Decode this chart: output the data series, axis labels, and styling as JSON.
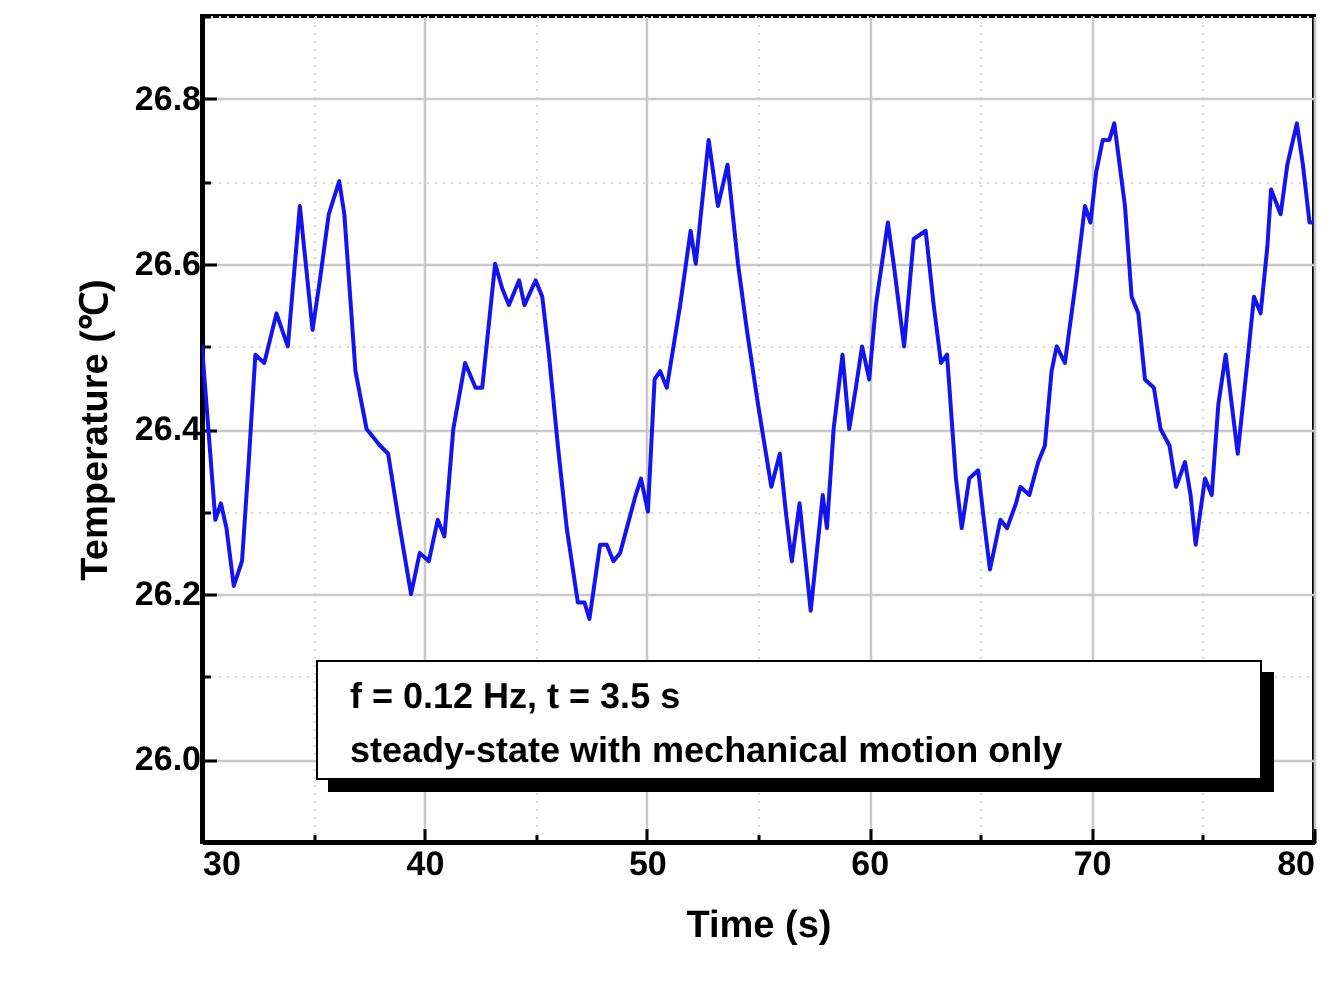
{
  "chart_data": {
    "type": "line",
    "xlabel": "Time (s)",
    "ylabel": "Temperature (℃)",
    "annotations": [
      "f = 0.12 Hz, t = 3.5 s",
      "steady-state with mechanical motion only"
    ],
    "xlim": [
      30,
      80
    ],
    "xticks": [
      30,
      {
        "value": 35,
        "label": null
      },
      40,
      {
        "value": 45,
        "label": null
      },
      50,
      {
        "value": 55,
        "label": null
      },
      60,
      {
        "value": 65,
        "label": null
      },
      70,
      {
        "value": 75,
        "label": null
      },
      80
    ],
    "ylim": [
      25.9,
      26.9
    ],
    "yticks": [
      {
        "value": 25.9,
        "label": null
      },
      {
        "value": 26.0,
        "label": "26.0"
      },
      {
        "value": 26.1,
        "label": null
      },
      {
        "value": 26.2,
        "label": "26.2"
      },
      {
        "value": 26.3,
        "label": null
      },
      {
        "value": 26.4,
        "label": "26.4"
      },
      {
        "value": 26.5,
        "label": null
      },
      {
        "value": 26.6,
        "label": "26.6"
      },
      {
        "value": 26.7,
        "label": null
      },
      {
        "value": 26.8,
        "label": "26.8"
      },
      {
        "value": 26.9,
        "label": null
      }
    ],
    "grid": true,
    "marker": "none",
    "line_style": "solid",
    "series": [
      {
        "color": "#1414f0",
        "x": [
          30,
          30.6,
          30.85,
          31.1,
          31.43,
          31.8,
          32.1,
          32.4,
          32.8,
          33.35,
          33.6,
          33.86,
          34.4,
          34.97,
          35.3,
          35.7,
          36.17,
          36.4,
          36.9,
          37.4,
          38.0,
          38.37,
          38.9,
          39.4,
          39.79,
          40.2,
          40.6,
          40.9,
          41.3,
          41.83,
          42.3,
          42.6,
          43.18,
          43.5,
          43.8,
          44.26,
          44.5,
          45.0,
          45.3,
          45.6,
          46.0,
          46.4,
          46.9,
          47.2,
          47.42,
          47.9,
          48.2,
          48.5,
          48.8,
          49.1,
          49.5,
          49.74,
          50.05,
          50.35,
          50.6,
          50.9,
          51.5,
          51.97,
          52.2,
          52.78,
          53.2,
          53.63,
          54.1,
          54.5,
          55.0,
          55.3,
          55.6,
          55.98,
          56.25,
          56.52,
          56.87,
          57.37,
          57.91,
          58.1,
          58.4,
          58.8,
          59.1,
          59.4,
          59.68,
          60.0,
          60.3,
          60.84,
          61.1,
          61.57,
          62.0,
          62.54,
          62.9,
          63.23,
          63.5,
          63.9,
          64.16,
          64.5,
          64.9,
          65.2,
          65.43,
          65.9,
          66.2,
          66.6,
          66.8,
          67.2,
          67.6,
          67.9,
          68.2,
          68.43,
          68.8,
          69.3,
          69.7,
          69.95,
          70.2,
          70.5,
          70.8,
          71.02,
          71.5,
          71.8,
          72.1,
          72.4,
          72.8,
          73.1,
          73.5,
          73.8,
          74.2,
          74.45,
          74.68,
          75.1,
          75.4,
          75.7,
          76.03,
          76.57,
          77.0,
          77.3,
          77.6,
          77.9,
          78.07,
          78.5,
          78.8,
          79.23,
          79.5,
          79.8,
          80
        ],
        "values": [
          26.5,
          26.29,
          26.31,
          26.28,
          26.21,
          26.24,
          26.36,
          26.49,
          26.48,
          26.54,
          26.52,
          26.5,
          26.67,
          26.52,
          26.58,
          26.66,
          26.7,
          26.66,
          26.47,
          26.4,
          26.38,
          26.37,
          26.28,
          26.2,
          26.25,
          26.24,
          26.29,
          26.27,
          26.4,
          26.48,
          26.45,
          26.45,
          26.6,
          26.57,
          26.55,
          26.58,
          26.55,
          26.58,
          26.56,
          26.49,
          26.38,
          26.28,
          26.19,
          26.19,
          26.17,
          26.26,
          26.26,
          26.24,
          26.25,
          26.28,
          26.32,
          26.34,
          26.3,
          26.46,
          26.47,
          26.45,
          26.55,
          26.64,
          26.6,
          26.75,
          26.67,
          26.72,
          26.6,
          26.52,
          26.43,
          26.38,
          26.33,
          26.37,
          26.3,
          26.24,
          26.31,
          26.18,
          26.32,
          26.28,
          26.4,
          26.49,
          26.4,
          26.45,
          26.5,
          26.46,
          26.55,
          26.65,
          26.6,
          26.5,
          26.63,
          26.64,
          26.55,
          26.48,
          26.49,
          26.34,
          26.28,
          26.34,
          26.35,
          26.28,
          26.23,
          26.29,
          26.28,
          26.31,
          26.33,
          26.32,
          26.36,
          26.38,
          26.47,
          26.5,
          26.48,
          26.58,
          26.67,
          26.65,
          26.71,
          26.75,
          26.75,
          26.77,
          26.67,
          26.56,
          26.54,
          26.46,
          26.45,
          26.4,
          26.38,
          26.33,
          26.36,
          26.32,
          26.26,
          26.34,
          26.32,
          26.43,
          26.49,
          26.37,
          26.48,
          26.56,
          26.54,
          26.62,
          26.69,
          26.66,
          26.72,
          26.77,
          26.72,
          26.65,
          26.65
        ]
      }
    ]
  }
}
